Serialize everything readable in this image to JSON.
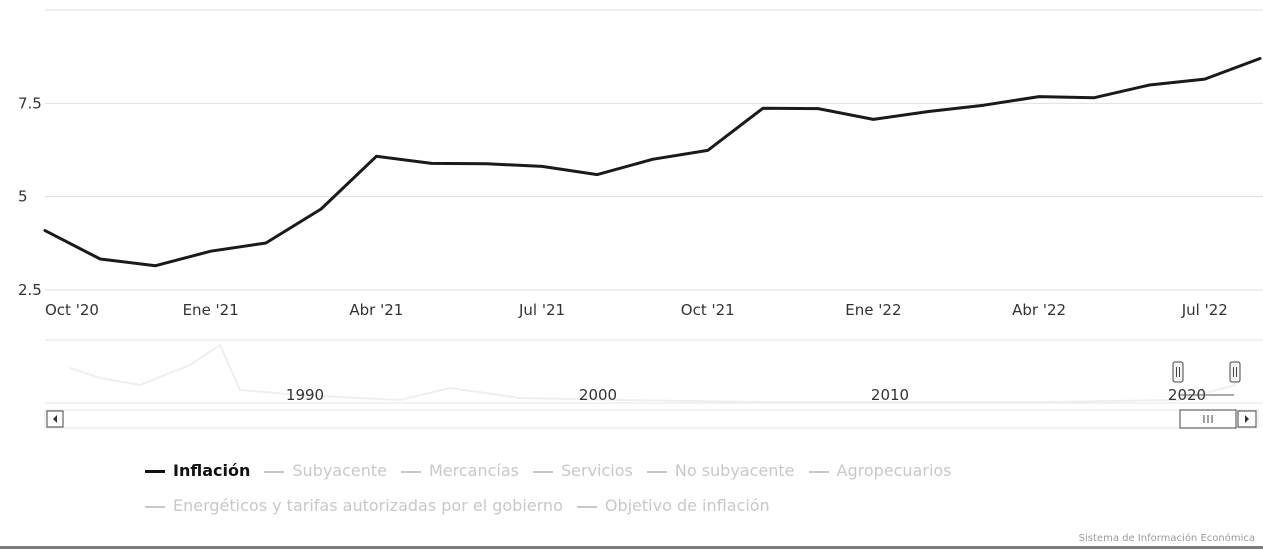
{
  "chart_data": {
    "type": "line",
    "title": "",
    "xlabel": "",
    "ylabel": "",
    "x": [
      "2020-10",
      "2020-11",
      "2020-12",
      "2021-01",
      "2021-02",
      "2021-03",
      "2021-04",
      "2021-05",
      "2021-06",
      "2021-07",
      "2021-08",
      "2021-09",
      "2021-10",
      "2021-11",
      "2021-12",
      "2022-01",
      "2022-02",
      "2022-03",
      "2022-04",
      "2022-05",
      "2022-06",
      "2022-07",
      "2022-08"
    ],
    "series": [
      {
        "name": "Inflación",
        "values": [
          4.09,
          3.33,
          3.15,
          3.54,
          3.76,
          4.67,
          6.08,
          5.89,
          5.88,
          5.81,
          5.59,
          6.0,
          6.24,
          7.37,
          7.36,
          7.07,
          7.28,
          7.45,
          7.68,
          7.65,
          7.99,
          8.15,
          8.7
        ]
      }
    ],
    "yticks": [
      2.5,
      5,
      7.5
    ],
    "ytick_labels": [
      "2.5",
      "5",
      "7.5"
    ],
    "ylim": [
      2.5,
      10
    ],
    "xticks": [
      "Oct '20",
      "Ene '21",
      "Abr '21",
      "Jul '21",
      "Oct '21",
      "Ene '22",
      "Abr '22",
      "Jul '22"
    ],
    "navigator_ticks": [
      "1990",
      "2000",
      "2010",
      "2020"
    ],
    "grid": true,
    "legend_placement": "bottom",
    "legend": [
      {
        "name": "Inflación",
        "active": true
      },
      {
        "name": "Subyacente",
        "active": false
      },
      {
        "name": "Mercancías",
        "active": false
      },
      {
        "name": "Servicios",
        "active": false
      },
      {
        "name": "No subyacente",
        "active": false
      },
      {
        "name": "Agropecuarios",
        "active": false
      },
      {
        "name": "Energéticos y tarifas autorizadas por el gobierno",
        "active": false
      },
      {
        "name": "Objetivo de inflación",
        "active": false
      }
    ],
    "colors": {
      "series": "#1a1a1a",
      "inactive": "#c8c8c8",
      "grid": "#e0e0e0"
    }
  },
  "credits": "Sistema de Información Económica"
}
